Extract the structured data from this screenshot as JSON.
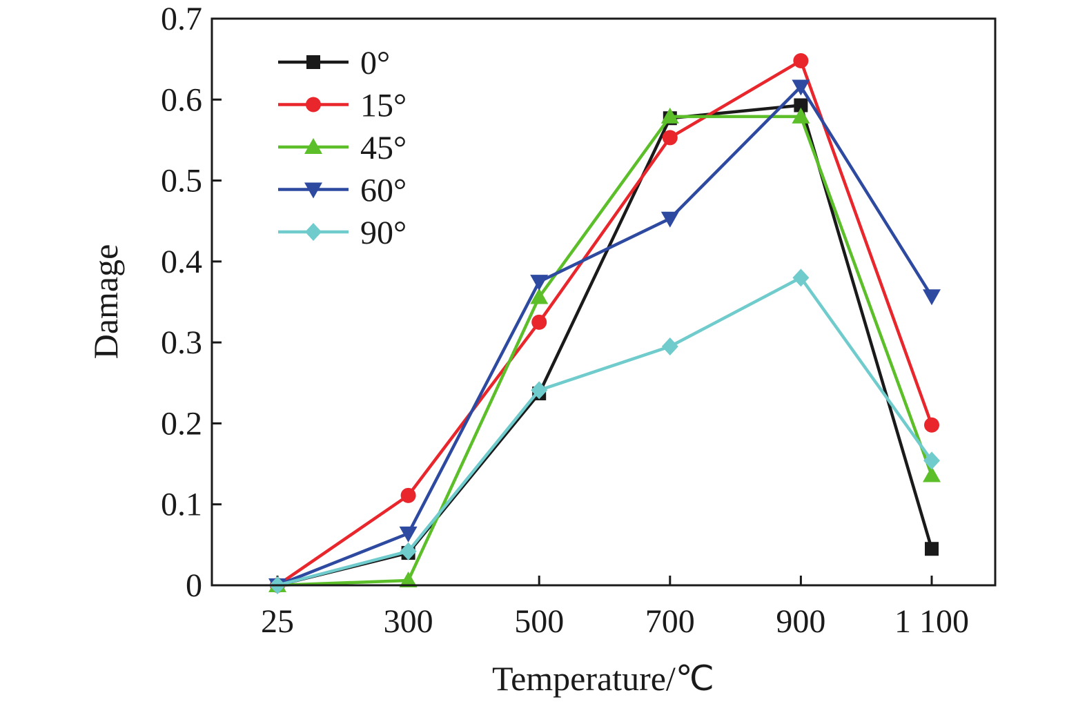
{
  "chart_data": {
    "type": "line",
    "title": "",
    "xlabel": "Temperature/℃",
    "ylabel": "Damage",
    "categories": [
      "25",
      "300",
      "500",
      "700",
      "900",
      "1 100"
    ],
    "ylim": [
      0,
      0.7
    ],
    "yticks": [
      "0",
      "0.1",
      "0.2",
      "0.3",
      "0.4",
      "0.5",
      "0.6",
      "0.7"
    ],
    "grid": false,
    "legend": "top-left",
    "series": [
      {
        "name": "0°",
        "color": "#1a1a1a",
        "marker": "square",
        "values": [
          0,
          0.04,
          0.237,
          0.577,
          0.593,
          0.045
        ]
      },
      {
        "name": "15°",
        "color": "#e8262c",
        "marker": "circle",
        "values": [
          0,
          0.111,
          0.325,
          0.553,
          0.648,
          0.198
        ]
      },
      {
        "name": "45°",
        "color": "#5cbf2a",
        "marker": "triangle-up",
        "values": [
          0,
          0.006,
          0.356,
          0.579,
          0.579,
          0.136
        ]
      },
      {
        "name": "60°",
        "color": "#2d4aa0",
        "marker": "triangle-down",
        "values": [
          0,
          0.064,
          0.375,
          0.453,
          0.616,
          0.357
        ]
      },
      {
        "name": "90°",
        "color": "#6fcbcc",
        "marker": "diamond",
        "values": [
          0,
          0.042,
          0.241,
          0.295,
          0.38,
          0.154
        ]
      }
    ]
  }
}
